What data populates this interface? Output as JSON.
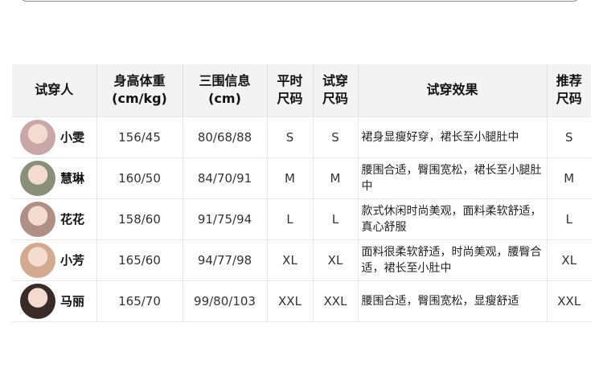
{
  "headers": {
    "tester": "试穿人",
    "hw": [
      "身高体重",
      "(cm/kg)"
    ],
    "measure": [
      "三围信息",
      "(cm)"
    ],
    "usual": [
      "平时",
      "尺码"
    ],
    "tried": [
      "试穿",
      "尺码"
    ],
    "effect": "试穿效果",
    "recommend": [
      "推荐",
      "尺码"
    ]
  },
  "rows": [
    {
      "name": "小雯",
      "hw": "156/45",
      "measure": "80/68/88",
      "usual": "S",
      "tried": "S",
      "effect": "裙身显瘦好穿，裙长至小腿肚中",
      "recommend": "S",
      "avatar_color": "#c9a6a8"
    },
    {
      "name": "慧琳",
      "hw": "160/50",
      "measure": "84/70/91",
      "usual": "M",
      "tried": "M",
      "effect": "腰围合适，臀围宽松，裙长至小腿肚中",
      "recommend": "M",
      "avatar_color": "#8a8f7a"
    },
    {
      "name": "花花",
      "hw": "158/60",
      "measure": "91/75/94",
      "usual": "L",
      "tried": "L",
      "effect": "款式休闲时尚美观，面料柔软舒适，真心舒服",
      "recommend": "L",
      "avatar_color": "#b08f86"
    },
    {
      "name": "小芳",
      "hw": "165/60",
      "measure": "94/77/98",
      "usual": "XL",
      "tried": "XL",
      "effect": "面料很柔软舒适，时尚美观，腰臀合适，裙长至小肚中",
      "recommend": "XL",
      "avatar_color": "#d3a98f"
    },
    {
      "name": "马丽",
      "hw": "165/70",
      "measure": "99/80/103",
      "usual": "XXL",
      "tried": "XXL",
      "effect": "腰围合适，臀围宽松，显瘦舒适",
      "recommend": "XXL",
      "avatar_color": "#3a2a28"
    }
  ]
}
